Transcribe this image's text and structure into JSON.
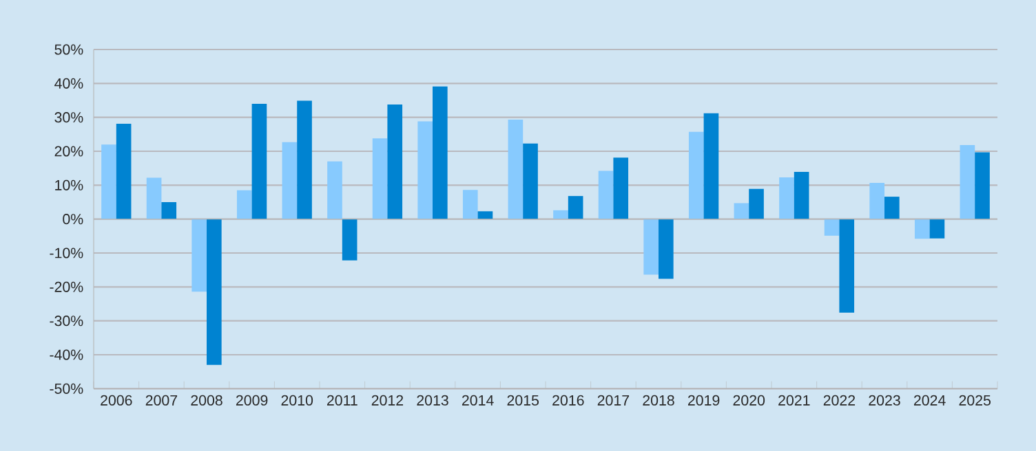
{
  "chart_data": {
    "type": "bar",
    "categories": [
      "2006",
      "2007",
      "2008",
      "2009",
      "2010",
      "2011",
      "2012",
      "2013",
      "2014",
      "2015",
      "2016",
      "2017",
      "2018",
      "2019",
      "2020",
      "2021",
      "2022",
      "2023",
      "2024",
      "2025"
    ],
    "series": [
      {
        "color": "#87cafe",
        "values": [
          22,
          12.2,
          -21.4,
          8.5,
          22.7,
          17,
          23.8,
          28.8,
          8.6,
          29.3,
          2.6,
          14.2,
          -16.4,
          25.7,
          4.7,
          12.3,
          -4.9,
          10.7,
          -5.8,
          21.8
        ]
      },
      {
        "color": "#0083d1",
        "values": [
          28.1,
          5,
          -43,
          34,
          34.9,
          -12.2,
          33.8,
          39.1,
          2.3,
          22.3,
          6.8,
          18.1,
          -17.6,
          31.2,
          8.9,
          13.9,
          -27.6,
          6.6,
          -5.7,
          19.7
        ]
      }
    ],
    "ylim": [
      -50,
      50
    ],
    "yticks": [
      {
        "value": -50,
        "label": "-50%"
      },
      {
        "value": -40,
        "label": "-40%"
      },
      {
        "value": -30,
        "label": "-30%"
      },
      {
        "value": -20,
        "label": "-20%"
      },
      {
        "value": -10,
        "label": "-10%"
      },
      {
        "value": 0,
        "label": "0%"
      },
      {
        "value": 10,
        "label": "10%"
      },
      {
        "value": 20,
        "label": "20%"
      },
      {
        "value": 30,
        "label": "30%"
      },
      {
        "value": 40,
        "label": "40%"
      },
      {
        "value": 50,
        "label": "50%"
      }
    ],
    "grid": "y"
  }
}
